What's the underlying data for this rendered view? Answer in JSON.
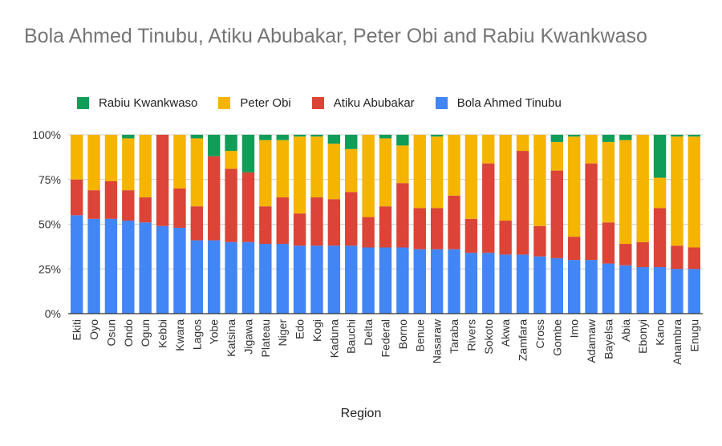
{
  "chart_data": {
    "type": "bar",
    "stacked": true,
    "percent_stacked": true,
    "title": "Bola Ahmed Tinubu, Atiku Abubakar, Peter Obi and Rabiu Kwankwaso",
    "xlabel": "Region",
    "ylabel": "",
    "ylim": [
      0,
      100
    ],
    "yticks": [
      "0%",
      "25%",
      "50%",
      "75%",
      "100%"
    ],
    "grid": true,
    "legend_position": "top",
    "categories": [
      "Ekiti",
      "Oyo",
      "Osun",
      "Ondo",
      "Ogun",
      "Kebbi",
      "Kwara",
      "Lagos",
      "Yobe",
      "Katsina",
      "Jigawa",
      "Plateau",
      "Niger",
      "Edo",
      "Kogi",
      "Kaduna",
      "Bauchi",
      "Delta",
      "Federal",
      "Borno",
      "Benue",
      "Nasaraw",
      "Taraba",
      "Rivers",
      "Sokoto",
      "Akwa",
      "Zamfara",
      "Cross",
      "Gombe",
      "Imo",
      "Adamaw",
      "Bayelsa",
      "Abia",
      "Ebonyi",
      "Kano",
      "Anambra",
      "Enugu"
    ],
    "series": [
      {
        "name": "Bola Ahmed Tinubu",
        "color": "#4285f4",
        "values": [
          55,
          53,
          53,
          52,
          51,
          49,
          48,
          41,
          41,
          40,
          40,
          39,
          39,
          38,
          38,
          38,
          38,
          37,
          37,
          37,
          36,
          36,
          36,
          34,
          34,
          33,
          33,
          32,
          31,
          30,
          30,
          28,
          27,
          26,
          26,
          25,
          25
        ]
      },
      {
        "name": "Atiku Abubakar",
        "color": "#db4437",
        "values": [
          20,
          16,
          21,
          17,
          14,
          51,
          22,
          19,
          47,
          41,
          39,
          21,
          26,
          18,
          27,
          26,
          30,
          17,
          23,
          36,
          23,
          23,
          30,
          19,
          50,
          19,
          58,
          17,
          49,
          13,
          54,
          23,
          12,
          14,
          33,
          13,
          12
        ]
      },
      {
        "name": "Peter Obi",
        "color": "#f4b400",
        "values": [
          25,
          31,
          26,
          29,
          35,
          0,
          30,
          38,
          0,
          10,
          0,
          37,
          32,
          43,
          34,
          31,
          24,
          46,
          38,
          21,
          41,
          40,
          34,
          47,
          16,
          48,
          9,
          51,
          16,
          56,
          16,
          45,
          58,
          60,
          17,
          61,
          62
        ]
      },
      {
        "name": "Rabiu Kwankwaso",
        "color": "#0f9d58",
        "values": [
          0,
          0,
          0,
          2,
          0,
          0,
          0,
          2,
          12,
          9,
          21,
          3,
          3,
          1,
          1,
          5,
          8,
          0,
          2,
          6,
          0,
          1,
          0,
          0,
          0,
          0,
          0,
          0,
          4,
          1,
          0,
          4,
          3,
          0,
          24,
          1,
          1
        ]
      }
    ]
  }
}
